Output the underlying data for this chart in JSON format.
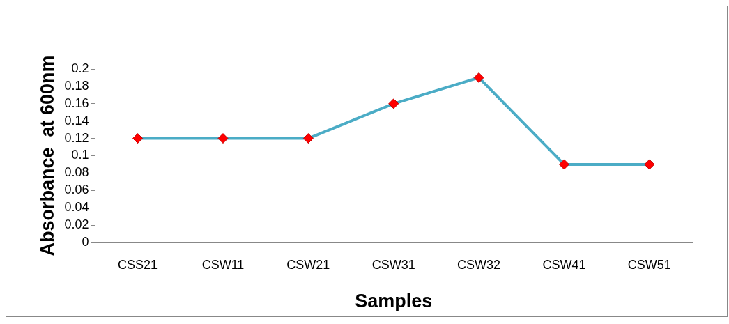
{
  "chart_data": {
    "type": "line",
    "xlabel": "Samples",
    "ylabel": "Absorbance  at 600nm",
    "categories": [
      "CSS21",
      "CSW11",
      "CSW21",
      "CSW31",
      "CSW32",
      "CSW41",
      "CSW51"
    ],
    "series": [
      {
        "color": "#4bacc6",
        "values": [
          0.12,
          0.12,
          0.12,
          0.16,
          0.19,
          0.09,
          0.09
        ]
      }
    ],
    "marker": "diamond",
    "line_style": "solid",
    "grid": false,
    "legend": false,
    "ylim": [
      0,
      0.2
    ],
    "yticks": [
      0,
      0.02,
      0.04,
      0.06,
      0.08,
      0.1,
      0.12,
      0.14,
      0.16,
      0.18,
      0.2
    ]
  }
}
